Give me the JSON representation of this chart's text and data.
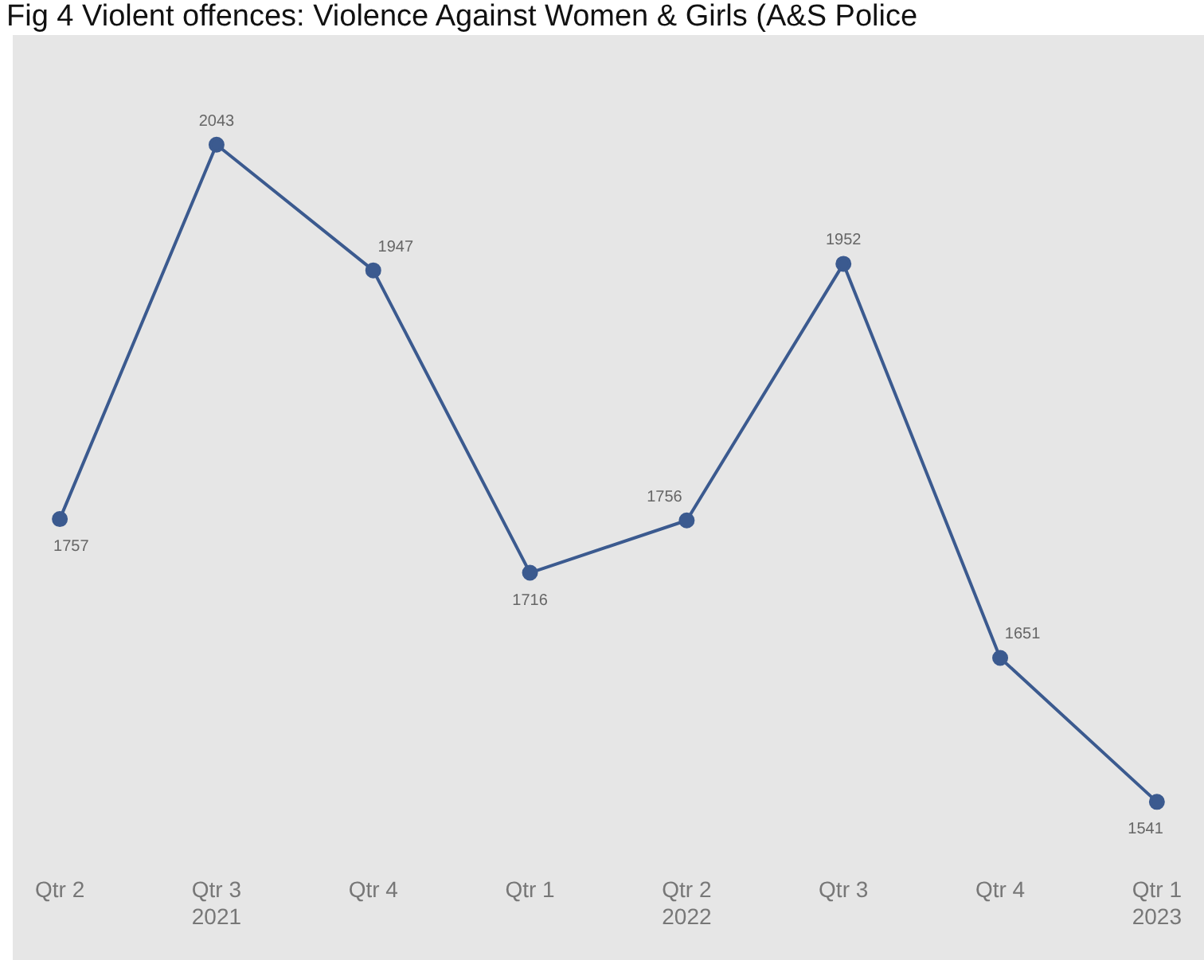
{
  "chart_data": {
    "type": "line",
    "title": "Fig 4 Violent offences: Violence Against Women & Girls (A&S Police",
    "categories": [
      "Qtr 2",
      "Qtr 3\n2021",
      "Qtr 4",
      "Qtr 1",
      "Qtr 2\n2022",
      "Qtr 3",
      "Qtr 4",
      "Qtr 1\n2023"
    ],
    "series": [
      {
        "color": "#3b5a8f",
        "values": [
          1757,
          2043,
          1947,
          1716,
          1756,
          1952,
          1651,
          1541
        ]
      }
    ],
    "data_labels": true,
    "marker": "circle",
    "grid": false,
    "legend": false
  }
}
